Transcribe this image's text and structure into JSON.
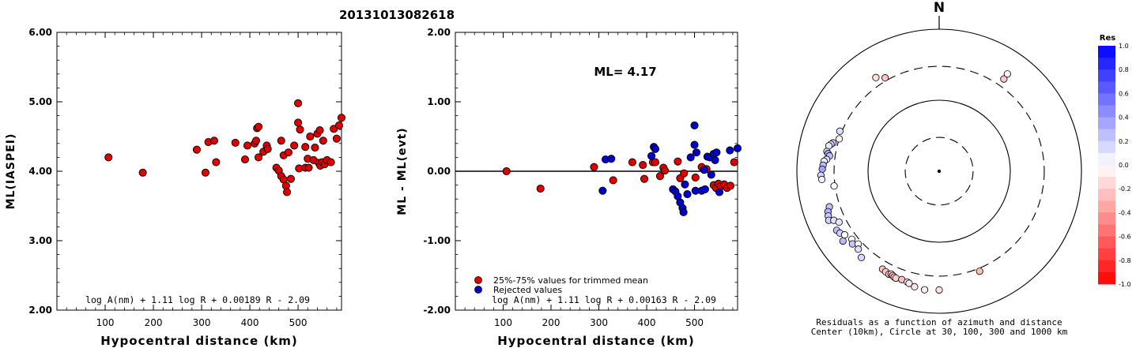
{
  "event_id": "20131013082618",
  "colors": {
    "red": "#e00000",
    "blue": "#0000cc",
    "axis": "#000000"
  },
  "chart_data": [
    {
      "type": "scatter",
      "xlabel": "Hypocentral distance (km)",
      "ylabel": "ML(IASPEI)",
      "xlim": [
        0,
        590
      ],
      "ylim": [
        2.0,
        6.0
      ],
      "xticks": [
        "100",
        "200",
        "300",
        "400",
        "500"
      ],
      "yticks": [
        "2.00",
        "3.00",
        "4.00",
        "5.00",
        "6.00"
      ],
      "formula": "log A(nm) + 1.11 log R + 0.00189 R - 2.09",
      "series": [
        {
          "points": [
            [
              107,
              4.2
            ],
            [
              178,
              3.98
            ],
            [
              290,
              4.31
            ],
            [
              308,
              3.98
            ],
            [
              314,
              4.42
            ],
            [
              326,
              4.44
            ],
            [
              330,
              4.13
            ],
            [
              370,
              4.41
            ],
            [
              390,
              4.17
            ],
            [
              395,
              4.37
            ],
            [
              410,
              4.4
            ],
            [
              413,
              4.44
            ],
            [
              415,
              4.62
            ],
            [
              418,
              4.64
            ],
            [
              418,
              4.2
            ],
            [
              428,
              4.28
            ],
            [
              435,
              4.37
            ],
            [
              437,
              4.32
            ],
            [
              455,
              4.05
            ],
            [
              460,
              4.01
            ],
            [
              465,
              3.93
            ],
            [
              465,
              4.44
            ],
            [
              470,
              3.88
            ],
            [
              470,
              4.23
            ],
            [
              475,
              3.79
            ],
            [
              477,
              3.7
            ],
            [
              480,
              4.27
            ],
            [
              485,
              3.89
            ],
            [
              492,
              4.37
            ],
            [
              500,
              4.98
            ],
            [
              500,
              4.7
            ],
            [
              502,
              4.04
            ],
            [
              504,
              4.6
            ],
            [
              515,
              4.35
            ],
            [
              515,
              4.05
            ],
            [
              520,
              4.18
            ],
            [
              522,
              4.05
            ],
            [
              525,
              4.5
            ],
            [
              532,
              4.16
            ],
            [
              535,
              4.34
            ],
            [
              540,
              4.54
            ],
            [
              543,
              4.12
            ],
            [
              545,
              4.59
            ],
            [
              546,
              4.08
            ],
            [
              550,
              4.13
            ],
            [
              552,
              4.44
            ],
            [
              555,
              4.1
            ],
            [
              560,
              4.16
            ],
            [
              568,
              4.13
            ],
            [
              574,
              4.61
            ],
            [
              580,
              4.47
            ],
            [
              585,
              4.66
            ],
            [
              590,
              4.77
            ]
          ]
        }
      ]
    },
    {
      "type": "scatter",
      "xlabel": "Hypocentral distance (km)",
      "ylabel": "ML - ML(evt)",
      "xlim": [
        0,
        590
      ],
      "ylim": [
        -2.0,
        2.0
      ],
      "xticks": [
        "100",
        "200",
        "300",
        "400",
        "500"
      ],
      "yticks": [
        "-2.00",
        "-1.00",
        "0.00",
        "1.00",
        "2.00"
      ],
      "annotation": "ML= 4.17",
      "formula": "log A(nm) + 1.11 log R + 0.00163 R - 2.09",
      "legend": {
        "placement": "bottom-left",
        "entries": [
          "25%-75% values for trimmed mean",
          "Rejected values"
        ]
      },
      "series": [
        {
          "legend_index": 0,
          "color": "red",
          "points": [
            [
              107,
              0.0
            ],
            [
              178,
              -0.25
            ],
            [
              290,
              0.06
            ],
            [
              330,
              -0.13
            ],
            [
              370,
              0.13
            ],
            [
              392,
              0.09
            ],
            [
              395,
              -0.11
            ],
            [
              413,
              0.13
            ],
            [
              418,
              0.13
            ],
            [
              428,
              -0.07
            ],
            [
              435,
              0.05
            ],
            [
              438,
              0.01
            ],
            [
              465,
              0.14
            ],
            [
              470,
              -0.1
            ],
            [
              478,
              -0.03
            ],
            [
              502,
              -0.09
            ],
            [
              515,
              0.06
            ],
            [
              525,
              0.03
            ],
            [
              540,
              -0.2
            ],
            [
              545,
              -0.24
            ],
            [
              550,
              -0.18
            ],
            [
              555,
              -0.22
            ],
            [
              562,
              -0.19
            ],
            [
              568,
              -0.24
            ],
            [
              575,
              -0.21
            ],
            [
              583,
              0.13
            ]
          ]
        },
        {
          "legend_index": 1,
          "color": "blue",
          "points": [
            [
              308,
              -0.28
            ],
            [
              314,
              0.17
            ],
            [
              326,
              0.18
            ],
            [
              410,
              0.22
            ],
            [
              415,
              0.35
            ],
            [
              418,
              0.32
            ],
            [
              455,
              -0.26
            ],
            [
              460,
              -0.29
            ],
            [
              465,
              -0.36
            ],
            [
              470,
              -0.45
            ],
            [
              475,
              -0.53
            ],
            [
              477,
              -0.59
            ],
            [
              480,
              -0.19
            ],
            [
              485,
              -0.33
            ],
            [
              492,
              0.2
            ],
            [
              500,
              0.66
            ],
            [
              500,
              0.38
            ],
            [
              502,
              -0.28
            ],
            [
              504,
              0.27
            ],
            [
              515,
              -0.28
            ],
            [
              520,
              0.02
            ],
            [
              522,
              -0.26
            ],
            [
              527,
              0.21
            ],
            [
              532,
              0.2
            ],
            [
              535,
              -0.05
            ],
            [
              540,
              0.25
            ],
            [
              543,
              0.16
            ],
            [
              546,
              0.27
            ],
            [
              552,
              -0.3
            ],
            [
              574,
              0.3
            ],
            [
              590,
              0.33
            ]
          ]
        }
      ]
    },
    {
      "type": "polar-scatter",
      "title": "N",
      "caption_1": "Residuals as a function of azimuth and distance",
      "caption_2": "Center (10km), Circle at 30, 100, 300 and 1000 km",
      "rings_km": [
        30,
        100,
        300,
        1000
      ],
      "colorbar": {
        "title": "Res",
        "ticks": [
          "1.0",
          "0.8",
          "0.6",
          "0.4",
          "0.2",
          "0.0",
          "-0.2",
          "-0.4",
          "-0.6",
          "-0.8",
          "-1.0"
        ],
        "min": -1.0,
        "max": 1.0
      },
      "points": [
        {
          "az": 330,
          "dist": 330,
          "res": -0.24
        },
        {
          "az": 326,
          "dist": 390,
          "res": -0.13
        },
        {
          "az": 35,
          "dist": 385,
          "res": -0.21
        },
        {
          "az": 35,
          "dist": 470,
          "res": 0.05
        },
        {
          "az": 288,
          "dist": 300,
          "res": -0.05
        },
        {
          "az": 292,
          "dist": 320,
          "res": 0.13
        },
        {
          "az": 285,
          "dist": 350,
          "res": 0.22
        },
        {
          "az": 284,
          "dist": 370,
          "res": 0.18
        },
        {
          "az": 283,
          "dist": 390,
          "res": 0.09
        },
        {
          "az": 280,
          "dist": 400,
          "res": 0.2
        },
        {
          "az": 279,
          "dist": 380,
          "res": 0.32
        },
        {
          "az": 278,
          "dist": 360,
          "res": 0.26
        },
        {
          "az": 276,
          "dist": 390,
          "res": 0.1
        },
        {
          "az": 275,
          "dist": 420,
          "res": 0.08
        },
        {
          "az": 273,
          "dist": 430,
          "res": 0.28
        },
        {
          "az": 271,
          "dist": 440,
          "res": 0.36
        },
        {
          "az": 268,
          "dist": 460,
          "res": 0.15
        },
        {
          "az": 266,
          "dist": 450,
          "res": 0.05
        },
        {
          "az": 262,
          "dist": 310,
          "res": 0.0
        },
        {
          "az": 252,
          "dist": 420,
          "res": 0.24
        },
        {
          "az": 250,
          "dist": 460,
          "res": 0.3
        },
        {
          "az": 248,
          "dist": 480,
          "res": 0.21
        },
        {
          "az": 246,
          "dist": 500,
          "res": 0.18
        },
        {
          "az": 245,
          "dist": 430,
          "res": 0.12
        },
        {
          "az": 243,
          "dist": 380,
          "res": 0.1
        },
        {
          "az": 240,
          "dist": 460,
          "res": 0.25
        },
        {
          "az": 238,
          "dist": 440,
          "res": 0.19
        },
        {
          "az": 236,
          "dist": 400,
          "res": 0.02
        },
        {
          "az": 234,
          "dist": 470,
          "res": 0.27
        },
        {
          "az": 232,
          "dist": 360,
          "res": -0.02
        },
        {
          "az": 230,
          "dist": 390,
          "res": 0.22
        },
        {
          "az": 228,
          "dist": 340,
          "res": 0.01
        },
        {
          "az": 226,
          "dist": 380,
          "res": 0.13
        },
        {
          "az": 222,
          "dist": 430,
          "res": 0.16
        },
        {
          "az": 210,
          "dist": 390,
          "res": -0.25
        },
        {
          "az": 208,
          "dist": 400,
          "res": -0.2
        },
        {
          "az": 206,
          "dist": 410,
          "res": -0.22
        },
        {
          "az": 205,
          "dist": 395,
          "res": -0.19
        },
        {
          "az": 204,
          "dist": 405,
          "res": -0.24
        },
        {
          "az": 203,
          "dist": 415,
          "res": -0.21
        },
        {
          "az": 202,
          "dist": 420,
          "res": -0.18
        },
        {
          "az": 199,
          "dist": 410,
          "res": -0.26
        },
        {
          "az": 196,
          "dist": 420,
          "res": 0.05
        },
        {
          "az": 195,
          "dist": 430,
          "res": -0.09
        },
        {
          "az": 192,
          "dist": 460,
          "res": -0.11
        },
        {
          "az": 187,
          "dist": 480,
          "res": -0.07
        },
        {
          "az": 180,
          "dist": 470,
          "res": -0.13
        },
        {
          "az": 158,
          "dist": 330,
          "res": -0.25
        }
      ]
    }
  ]
}
